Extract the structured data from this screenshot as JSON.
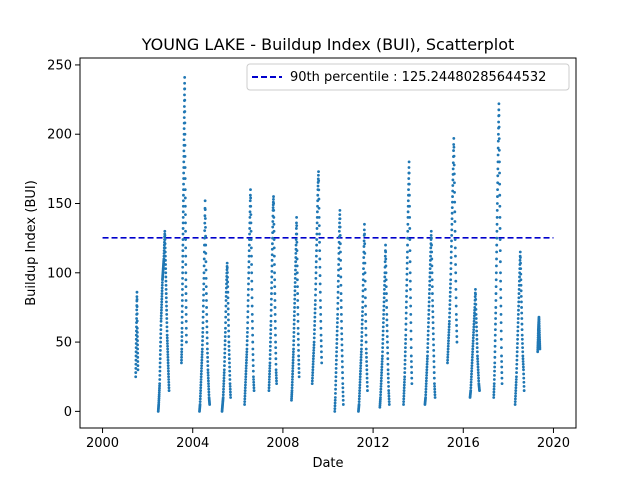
{
  "chart_data": {
    "type": "scatter",
    "title": "YOUNG LAKE - Buildup Index (BUI), Scatterplot",
    "xlabel": "Date",
    "ylabel": "Buildup Index (BUI)",
    "xlim": [
      1999.0,
      2021.0
    ],
    "ylim": [
      -12,
      255
    ],
    "x_ticks": [
      2000,
      2004,
      2008,
      2012,
      2016,
      2020
    ],
    "x_tick_labels": [
      "2000",
      "2004",
      "2008",
      "2012",
      "2016",
      "2020"
    ],
    "y_ticks": [
      0,
      50,
      100,
      150,
      200,
      250
    ],
    "y_tick_labels": [
      "0",
      "50",
      "100",
      "150",
      "200",
      "250"
    ],
    "grid": false,
    "legend_position": "top-right",
    "point_color": "#1f77b4",
    "reference_line": {
      "label": "90th percentile : 125.24480285644532",
      "value": 125.24480285644532,
      "x_start": 2000.0,
      "x_end": 2020.0,
      "color": "#0000cc",
      "style": "dashed"
    },
    "seasons": [
      {
        "start": 2001.47,
        "end": 2001.57,
        "values": [
          25,
          40,
          55,
          70,
          86,
          60,
          45,
          30
        ]
      },
      {
        "start": 2002.47,
        "end": 2002.95,
        "values": [
          0,
          5,
          12,
          20,
          35,
          50,
          65,
          75,
          85,
          95,
          100,
          105,
          110,
          120,
          130,
          115,
          100,
          85,
          70,
          55,
          45,
          35,
          25,
          15
        ]
      },
      {
        "start": 2003.5,
        "end": 2003.72,
        "values": [
          35,
          45,
          60,
          80,
          100,
          120,
          140,
          160,
          180,
          200,
          220,
          241,
          200,
          160,
          130,
          100,
          75,
          50
        ]
      },
      {
        "start": 2004.3,
        "end": 2004.75,
        "values": [
          0,
          5,
          15,
          25,
          35,
          45,
          60,
          80,
          100,
          125,
          152,
          120,
          90,
          65,
          45,
          30,
          20,
          10,
          5
        ]
      },
      {
        "start": 2005.3,
        "end": 2005.68,
        "values": [
          0,
          5,
          10,
          20,
          30,
          45,
          60,
          80,
          95,
          107,
          90,
          70,
          50,
          35,
          20,
          10
        ]
      },
      {
        "start": 2006.3,
        "end": 2006.72,
        "values": [
          5,
          15,
          25,
          35,
          45,
          60,
          80,
          100,
          120,
          140,
          160,
          130,
          100,
          70,
          45,
          25,
          15
        ]
      },
      {
        "start": 2007.38,
        "end": 2007.72,
        "values": [
          15,
          25,
          35,
          50,
          65,
          85,
          105,
          125,
          145,
          155,
          130,
          100,
          75,
          50,
          30,
          20
        ]
      },
      {
        "start": 2008.38,
        "end": 2008.72,
        "values": [
          8,
          15,
          25,
          35,
          45,
          60,
          75,
          90,
          105,
          120,
          140,
          110,
          85,
          60,
          40,
          25
        ]
      },
      {
        "start": 2009.3,
        "end": 2009.72,
        "values": [
          20,
          30,
          40,
          50,
          65,
          80,
          100,
          120,
          140,
          160,
          173,
          140,
          110,
          80,
          55,
          35
        ]
      },
      {
        "start": 2010.3,
        "end": 2010.68,
        "values": [
          0,
          10,
          25,
          40,
          55,
          70,
          90,
          110,
          130,
          145,
          115,
          85,
          60,
          40,
          20,
          5
        ]
      },
      {
        "start": 2011.35,
        "end": 2011.75,
        "values": [
          0,
          5,
          15,
          25,
          35,
          45,
          60,
          75,
          95,
          115,
          135,
          100,
          70,
          45,
          30,
          15
        ]
      },
      {
        "start": 2012.3,
        "end": 2012.72,
        "values": [
          3,
          10,
          20,
          30,
          40,
          55,
          70,
          85,
          100,
          120,
          95,
          70,
          50,
          30,
          15,
          5
        ]
      },
      {
        "start": 2013.35,
        "end": 2013.72,
        "values": [
          5,
          15,
          25,
          40,
          55,
          75,
          95,
          115,
          140,
          160,
          180,
          140,
          100,
          70,
          40,
          20
        ]
      },
      {
        "start": 2014.3,
        "end": 2014.75,
        "values": [
          5,
          10,
          20,
          30,
          40,
          55,
          70,
          85,
          100,
          115,
          130,
          105,
          80,
          60,
          40,
          20,
          10
        ]
      },
      {
        "start": 2015.3,
        "end": 2015.72,
        "values": [
          35,
          45,
          55,
          65,
          80,
          95,
          115,
          135,
          155,
          175,
          197,
          165,
          130,
          100,
          70,
          50
        ]
      },
      {
        "start": 2016.3,
        "end": 2016.72,
        "values": [
          10,
          15,
          25,
          35,
          45,
          55,
          65,
          75,
          88,
          70,
          55,
          40,
          30,
          20,
          15
        ]
      },
      {
        "start": 2017.35,
        "end": 2017.72,
        "values": [
          10,
          20,
          35,
          55,
          75,
          100,
          125,
          150,
          175,
          200,
          222,
          180,
          140,
          100,
          70,
          40,
          20
        ]
      },
      {
        "start": 2018.3,
        "end": 2018.7,
        "values": [
          5,
          15,
          25,
          40,
          55,
          70,
          85,
          100,
          115,
          95,
          75,
          55,
          40,
          30,
          15
        ]
      },
      {
        "start": 2019.3,
        "end": 2019.4,
        "values": [
          43,
          50,
          58,
          63,
          68,
          60,
          52,
          45
        ]
      }
    ]
  }
}
